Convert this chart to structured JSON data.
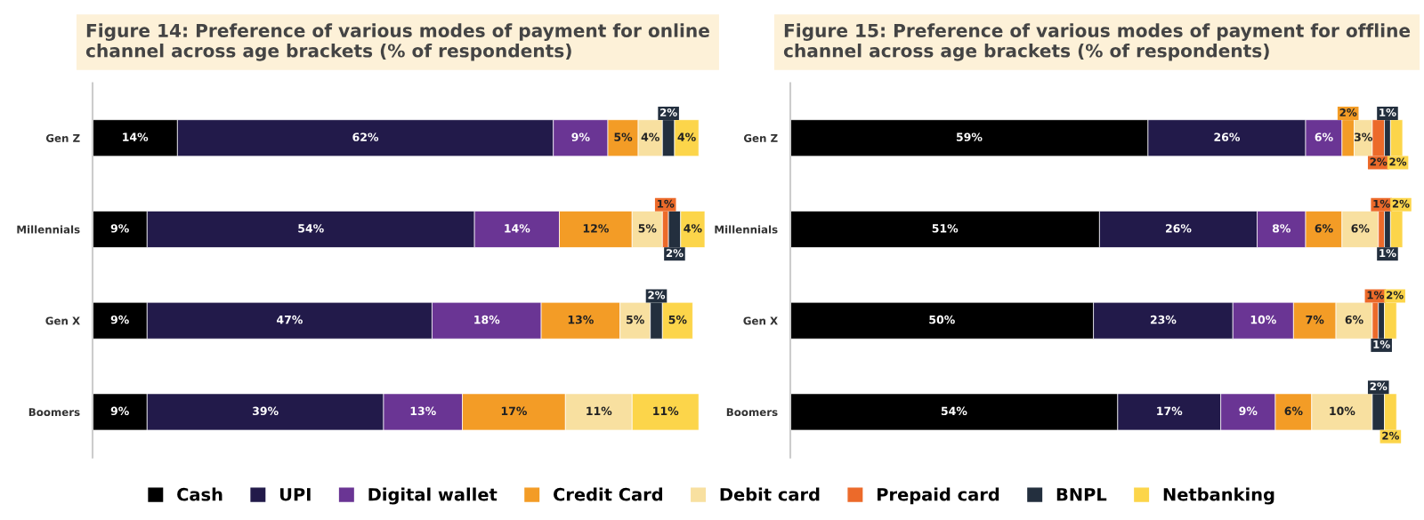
{
  "chart_data": [
    {
      "type": "bar",
      "orientation": "horizontal",
      "stacked": true,
      "title": "Figure 14: Preference of various modes of payment for online\nchannel across age brackets (% of respondents)",
      "categories": [
        "Gen Z",
        "Millennials",
        "Gen X",
        "Boomers"
      ],
      "tick_labels": "y",
      "grid": false,
      "series": [
        {
          "color": "#000000",
          "values": [
            14,
            9,
            9,
            9
          ],
          "value_labels": [
            "14%",
            "9%",
            "9%",
            "9%"
          ]
        },
        {
          "color": "#221a4a",
          "values": [
            62,
            54,
            47,
            39
          ],
          "value_labels": [
            "62%",
            "54%",
            "47%",
            "39%"
          ]
        },
        {
          "color": "#6a3594",
          "values": [
            9,
            14,
            18,
            13
          ],
          "value_labels": [
            "9%",
            "14%",
            "18%",
            "13%"
          ]
        },
        {
          "color": "#f39c26",
          "values": [
            5,
            12,
            13,
            17
          ],
          "value_labels": [
            "5%",
            "12%",
            "13%",
            "17%"
          ]
        },
        {
          "color": "#f8e0a0",
          "values": [
            4,
            5,
            5,
            11
          ],
          "value_labels": [
            "4%",
            "5%",
            "5%",
            "11%"
          ]
        },
        {
          "color": "#ec6a2a",
          "values": [
            null,
            1,
            null,
            null
          ],
          "value_labels": [
            null,
            "1%",
            null,
            null
          ]
        },
        {
          "color": "#232f3e",
          "values": [
            2,
            2,
            2,
            null
          ],
          "value_labels": [
            "2%",
            "2%",
            "2%",
            null
          ]
        },
        {
          "color": "#fcd54a",
          "values": [
            4,
            4,
            5,
            11
          ],
          "value_labels": [
            "4%",
            "4%",
            "5%",
            "11%"
          ]
        }
      ]
    },
    {
      "type": "bar",
      "orientation": "horizontal",
      "stacked": true,
      "title": "Figure 15: Preference of various modes of payment for offline\nchannel across age brackets (% of respondents)",
      "categories": [
        "Gen Z",
        "Millennials",
        "Gen X",
        "Boomers"
      ],
      "tick_labels": "y",
      "grid": false,
      "legend": "bottom",
      "series": [
        {
          "name": "Cash",
          "color": "#000000",
          "values": [
            59,
            51,
            50,
            54
          ],
          "value_labels": [
            "59%",
            "51%",
            "50%",
            "54%"
          ]
        },
        {
          "name": "UPI",
          "color": "#221a4a",
          "values": [
            26,
            26,
            23,
            17
          ],
          "value_labels": [
            "26%",
            "26%",
            "23%",
            "17%"
          ]
        },
        {
          "name": "Digital wallet",
          "color": "#6a3594",
          "values": [
            6,
            8,
            10,
            9
          ],
          "value_labels": [
            "6%",
            "8%",
            "10%",
            "9%"
          ]
        },
        {
          "name": "Credit Card",
          "color": "#f39c26",
          "values": [
            2,
            6,
            7,
            6
          ],
          "value_labels": [
            "2%",
            "6%",
            "7%",
            "6%"
          ]
        },
        {
          "name": "Debit card",
          "color": "#f8e0a0",
          "values": [
            3,
            6,
            6,
            10
          ],
          "value_labels": [
            "3%",
            "6%",
            "6%",
            "10%"
          ]
        },
        {
          "name": "Prepaid card",
          "color": "#ec6a2a",
          "values": [
            2,
            1,
            1,
            null
          ],
          "value_labels": [
            "2%",
            "1%",
            "1%",
            null
          ]
        },
        {
          "name": "BNPL",
          "color": "#232f3e",
          "values": [
            1,
            1,
            1,
            2
          ],
          "value_labels": [
            "1%",
            "1%",
            "1%",
            "2%"
          ]
        },
        {
          "name": "Netbanking",
          "color": "#fcd54a",
          "values": [
            2,
            2,
            2,
            2
          ],
          "value_labels": [
            "2%",
            "2%",
            "2%",
            "2%"
          ]
        }
      ]
    }
  ]
}
